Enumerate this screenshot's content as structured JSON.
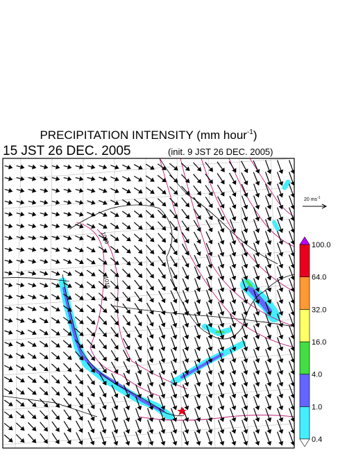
{
  "title": {
    "main": "PRECIPITATION INTENSITY (mm hour",
    "unit_exponent": "-1",
    "close": ")"
  },
  "subtitle": {
    "valid_time": "15 JST 26 DEC. 2005",
    "init_time": "(init. 9 JST 26 DEC. 2005)"
  },
  "vector_scale": {
    "label": "20 ms",
    "exponent": "-1"
  },
  "colorbar": {
    "over_color": "#c000ff",
    "under_color": "#ffffff",
    "bins": [
      {
        "color": "#44eeff"
      },
      {
        "color": "#6464ff"
      },
      {
        "color": "#44dd44"
      },
      {
        "color": "#ffff66"
      },
      {
        "color": "#ff9933"
      },
      {
        "color": "#e8001e"
      }
    ],
    "labels": [
      "0.4",
      "1.0",
      "4.0",
      "16.0",
      "32.0",
      "64.0",
      "100.0"
    ]
  },
  "contour_labels": [
    "1008",
    "1016"
  ]
}
